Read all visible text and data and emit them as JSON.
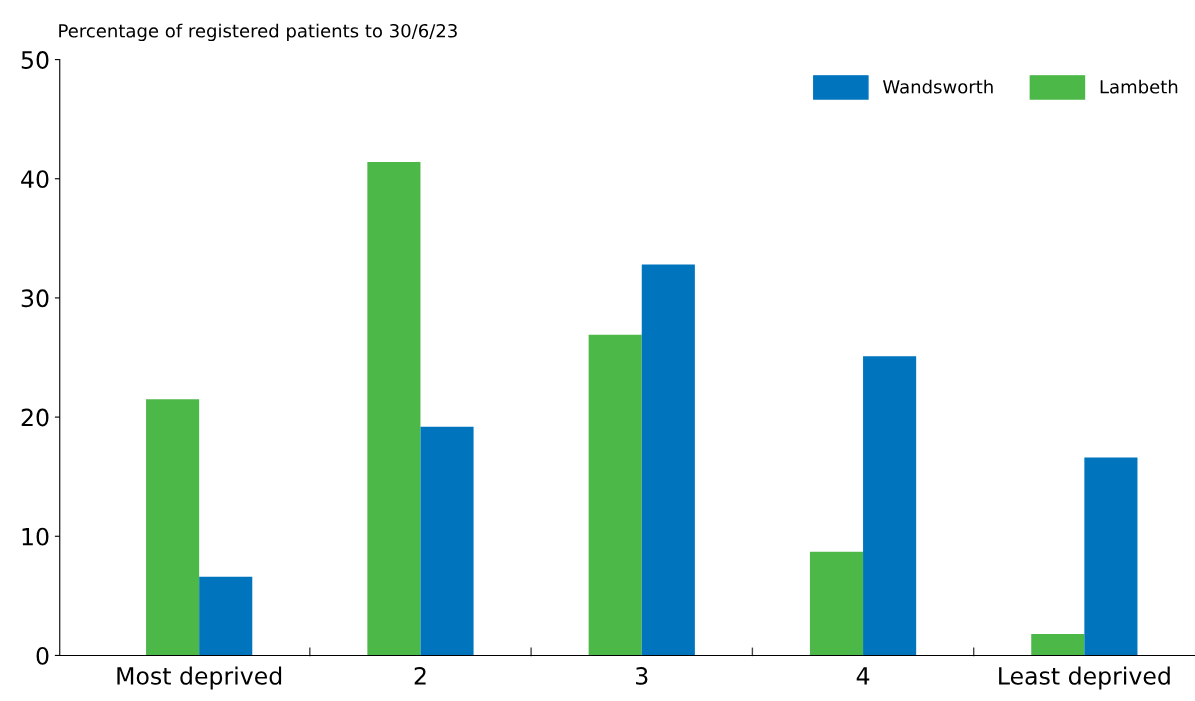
{
  "chart_data": {
    "type": "bar",
    "title": "Percentage of registered patients to 30/6/23",
    "categories": [
      "Most deprived",
      "2",
      "3",
      "4",
      "Least deprived"
    ],
    "series": [
      {
        "name": "Lambeth",
        "color": "#4cb848",
        "values": [
          21.5,
          41.4,
          26.9,
          8.7,
          1.8
        ]
      },
      {
        "name": "Wandsworth",
        "color": "#0075be",
        "values": [
          6.6,
          19.2,
          32.8,
          25.1,
          16.6
        ]
      }
    ],
    "ylim": [
      0,
      50
    ],
    "yticks": [
      0,
      10,
      20,
      30,
      40,
      50
    ],
    "grid": false,
    "legend": "top right"
  }
}
